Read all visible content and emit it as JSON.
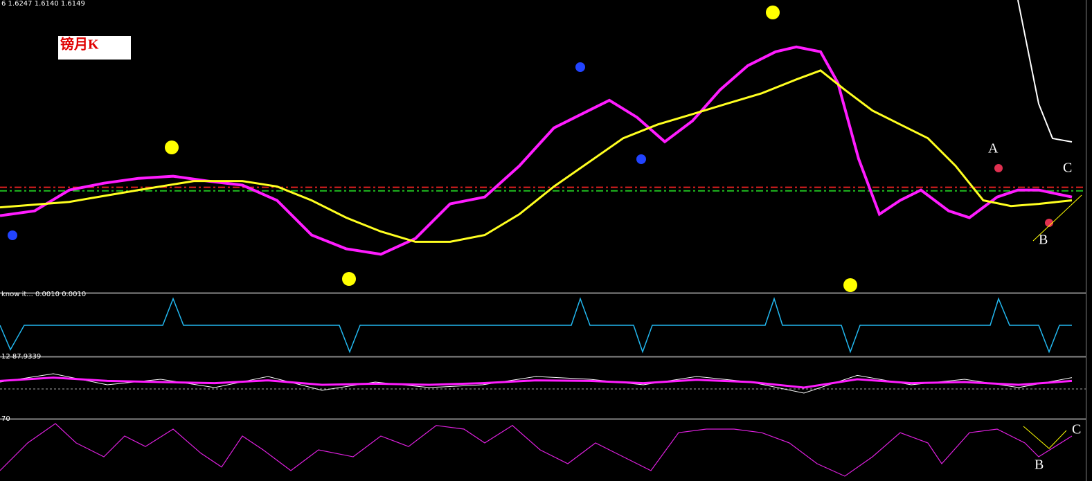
{
  "chart_data": [
    {
      "type": "line",
      "title": "6 1.6247 1.6140 1.6149",
      "xlim": [
        0,
        1568
      ],
      "ylim": [
        1.55,
        1.7
      ],
      "levels": [
        {
          "value": 1.6038,
          "color": "#e02020"
        },
        {
          "value": 1.602,
          "color": "#20c020"
        }
      ],
      "series": [
        {
          "color": "#ff1cff",
          "width": 4,
          "x": [
            0,
            50,
            100,
            150,
            200,
            250,
            300,
            350,
            400,
            450,
            500,
            550,
            600,
            650,
            700,
            750,
            800,
            850,
            880,
            920,
            960,
            1000,
            1040,
            1080,
            1120,
            1150,
            1185,
            1210,
            1240,
            1270,
            1300,
            1330,
            1370,
            1400,
            1440,
            1470,
            1500,
            1548
          ],
          "values": [
            1.5892,
            1.5917,
            1.6024,
            1.6059,
            1.6084,
            1.6095,
            1.607,
            1.6049,
            1.5971,
            1.5793,
            1.5722,
            1.5694,
            1.5775,
            1.5953,
            1.5988,
            1.6148,
            1.6343,
            1.6432,
            1.6485,
            1.6397,
            1.6272,
            1.6379,
            1.6539,
            1.6663,
            1.6734,
            1.6759,
            1.6734,
            1.6574,
            1.6184,
            1.59,
            1.5971,
            1.6024,
            1.5917,
            1.5882,
            1.5988,
            1.6024,
            1.6024,
            1.5988
          ]
        },
        {
          "color": "#ffff20",
          "width": 3,
          "x": [
            0,
            100,
            200,
            280,
            350,
            400,
            450,
            500,
            550,
            600,
            650,
            700,
            750,
            800,
            850,
            900,
            950,
            1000,
            1050,
            1100,
            1150,
            1185,
            1220,
            1260,
            1300,
            1340,
            1380,
            1420,
            1460,
            1500,
            1548
          ],
          "values": [
            1.5935,
            1.5963,
            1.6024,
            1.607,
            1.607,
            1.6042,
            1.5971,
            1.5882,
            1.5811,
            1.5758,
            1.5758,
            1.5793,
            1.59,
            1.6042,
            1.6166,
            1.629,
            1.6361,
            1.6414,
            1.6468,
            1.6521,
            1.6592,
            1.6638,
            1.6539,
            1.6432,
            1.6361,
            1.629,
            1.6148,
            1.5971,
            1.5942,
            1.5953,
            1.5971
          ]
        }
      ]
    },
    {
      "type": "line",
      "title": "know it...  0.0010 0.0010",
      "xlim": [
        0,
        1568
      ],
      "ylim": [
        0,
        1
      ],
      "series": [
        {
          "color": "#22b8f0",
          "width": 1.5,
          "x": [
            0,
            15,
            35,
            235,
            250,
            265,
            490,
            505,
            520,
            825,
            838,
            852,
            915,
            928,
            942,
            1105,
            1118,
            1130,
            1215,
            1228,
            1242,
            1430,
            1442,
            1458,
            1500,
            1515,
            1530,
            1548
          ],
          "values": [
            0.5,
            0.06,
            0.5,
            0.5,
            0.98,
            0.5,
            0.5,
            0.02,
            0.5,
            0.5,
            0.98,
            0.5,
            0.5,
            0.02,
            0.5,
            0.5,
            0.98,
            0.5,
            0.5,
            0.02,
            0.5,
            0.5,
            0.98,
            0.5,
            0.5,
            0.02,
            0.5,
            0.5
          ]
        }
      ]
    },
    {
      "type": "line",
      "title": "12 87.9339",
      "xlim": [
        0,
        1568
      ],
      "ylim": [
        0,
        100
      ],
      "levels": [
        {
          "value": 47.5,
          "color": "#aaaaaa"
        }
      ],
      "series": [
        {
          "color": "#ffffff",
          "width": 1,
          "x": [
            0,
            77,
            155,
            232,
            310,
            387,
            465,
            542,
            620,
            697,
            774,
            852,
            929,
            1006,
            1084,
            1161,
            1238,
            1316,
            1393,
            1471,
            1548
          ],
          "values": [
            60,
            75,
            55,
            65,
            50,
            70,
            45,
            60,
            50,
            55,
            70,
            65,
            55,
            70,
            60,
            40,
            72,
            55,
            65,
            50,
            68
          ]
        },
        {
          "color": "#ff1cff",
          "width": 3,
          "x": [
            0,
            77,
            155,
            232,
            310,
            387,
            465,
            542,
            620,
            697,
            774,
            852,
            929,
            1006,
            1084,
            1161,
            1238,
            1316,
            1393,
            1471,
            1548
          ],
          "values": [
            62,
            68,
            62,
            60,
            58,
            63,
            55,
            57,
            55,
            58,
            63,
            62,
            58,
            64,
            60,
            50,
            65,
            58,
            60,
            55,
            62
          ]
        }
      ]
    },
    {
      "type": "line",
      "title": "70",
      "xlim": [
        0,
        1568
      ],
      "ylim": [
        0,
        100
      ],
      "series": [
        {
          "color": "#e020e0",
          "width": 1.2,
          "x": [
            0,
            40,
            80,
            110,
            150,
            180,
            210,
            250,
            290,
            320,
            350,
            380,
            420,
            460,
            510,
            550,
            590,
            630,
            670,
            700,
            740,
            780,
            820,
            860,
            900,
            940,
            980,
            1020,
            1060,
            1100,
            1140,
            1180,
            1220,
            1260,
            1300,
            1340,
            1360,
            1400,
            1440,
            1480,
            1500,
            1548
          ],
          "values": [
            12.5,
            62.5,
            97.5,
            62.5,
            37.5,
            75,
            56,
            87.5,
            44,
            19,
            75,
            50,
            12.5,
            50,
            37.5,
            75,
            56,
            94,
            87.5,
            62.5,
            94,
            50,
            25,
            62.5,
            37.5,
            12.5,
            81,
            87.5,
            87.5,
            81,
            62.5,
            25,
            2.5,
            37.5,
            81,
            62.5,
            25,
            81,
            87.5,
            62.5,
            37.5,
            75
          ]
        }
      ]
    }
  ],
  "annotations": [
    "镑月K",
    "A",
    "B",
    "C",
    "B",
    "C"
  ]
}
